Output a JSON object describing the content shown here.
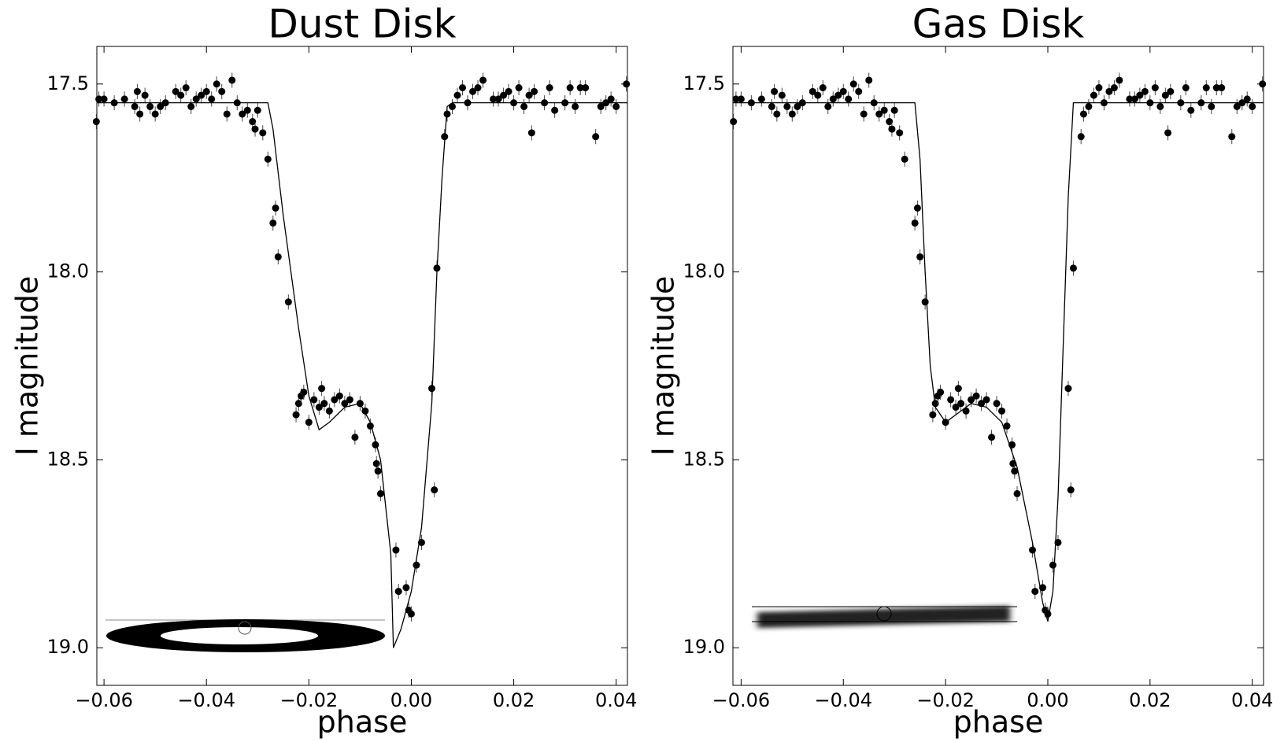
{
  "chart_data": [
    {
      "type": "scatter",
      "title": "Dust Disk",
      "xlabel": "phase",
      "ylabel": "I magnitude",
      "xlim": [
        -0.0614,
        0.0422
      ],
      "ylim": [
        17.4,
        19.1
      ],
      "invert_y": true,
      "xticks": [
        {
          "value": -0.06,
          "label": "−0.06"
        },
        {
          "value": -0.04,
          "label": "−0.04"
        },
        {
          "value": -0.02,
          "label": "−0.02"
        },
        {
          "value": 0,
          "label": "0.00"
        },
        0.02,
        0.04
      ],
      "yticks": [
        17.5,
        {
          "value": 18,
          "label": "18.0"
        },
        18.5,
        {
          "value": 19,
          "label": "19.0"
        }
      ],
      "series": [
        {
          "kind": "points",
          "color": "#000000",
          "yerr": 0.02,
          "x": [
            -0.0615,
            -0.061,
            -0.06,
            -0.058,
            -0.056,
            -0.054,
            -0.0535,
            -0.053,
            -0.052,
            -0.051,
            -0.05,
            -0.049,
            -0.048,
            -0.046,
            -0.045,
            -0.044,
            -0.043,
            -0.042,
            -0.041,
            -0.04,
            -0.039,
            -0.038,
            -0.037,
            -0.036,
            -0.035,
            -0.034,
            -0.033,
            -0.032,
            -0.031,
            -0.0305,
            -0.03,
            -0.029,
            -0.028,
            -0.027,
            -0.0265,
            -0.026,
            -0.024,
            -0.0225,
            -0.022,
            -0.0215,
            -0.021,
            -0.02,
            -0.019,
            -0.018,
            -0.0175,
            -0.017,
            -0.016,
            -0.015,
            -0.014,
            -0.013,
            -0.012,
            -0.011,
            -0.01,
            -0.009,
            -0.008,
            -0.007,
            -0.0068,
            -0.0065,
            -0.006,
            -0.003,
            -0.0025,
            -0.001,
            -0.0005,
            0,
            0.001,
            0.002,
            0.004,
            0.0045,
            0.005,
            0.0065,
            0.007,
            0.008,
            0.009,
            0.01,
            0.011,
            0.012,
            0.013,
            0.014,
            0.016,
            0.017,
            0.018,
            0.019,
            0.02,
            0.021,
            0.022,
            0.023,
            0.0235,
            0.024,
            0.026,
            0.027,
            0.028,
            0.03,
            0.031,
            0.032,
            0.033,
            0.034,
            0.036,
            0.037,
            0.038,
            0.039,
            0.04,
            0.042
          ],
          "values": [
            17.6,
            17.54,
            17.54,
            17.55,
            17.54,
            17.56,
            17.52,
            17.58,
            17.53,
            17.56,
            17.58,
            17.56,
            17.55,
            17.52,
            17.53,
            17.51,
            17.56,
            17.54,
            17.53,
            17.52,
            17.54,
            17.5,
            17.52,
            17.58,
            17.49,
            17.55,
            17.58,
            17.57,
            17.6,
            17.62,
            17.57,
            17.63,
            17.7,
            17.87,
            17.83,
            17.96,
            18.08,
            18.38,
            18.35,
            18.33,
            18.32,
            18.4,
            18.34,
            18.36,
            18.31,
            18.35,
            18.37,
            18.34,
            18.33,
            18.35,
            18.34,
            18.44,
            18.35,
            18.37,
            18.41,
            18.46,
            18.51,
            18.53,
            18.59,
            18.74,
            18.85,
            18.84,
            18.9,
            18.91,
            18.78,
            18.72,
            18.31,
            18.58,
            17.99,
            17.64,
            17.58,
            17.56,
            17.53,
            17.51,
            17.55,
            17.52,
            17.51,
            17.49,
            17.54,
            17.54,
            17.53,
            17.52,
            17.55,
            17.51,
            17.56,
            17.53,
            17.63,
            17.52,
            17.55,
            17.51,
            17.57,
            17.55,
            17.51,
            17.56,
            17.51,
            17.51,
            17.64,
            17.56,
            17.55,
            17.54,
            17.56,
            17.5
          ]
        },
        {
          "kind": "line",
          "color": "#000000",
          "x": [
            -0.0614,
            -0.028,
            -0.027,
            -0.025,
            -0.022,
            -0.02,
            -0.018,
            -0.016,
            -0.013,
            -0.01,
            -0.008,
            -0.006,
            -0.004,
            -0.0035,
            -0.002,
            0,
            0.002,
            0.004,
            0.005,
            0.006,
            0.007,
            0.008,
            0.0422
          ],
          "values": [
            17.55,
            17.55,
            17.62,
            17.85,
            18.15,
            18.33,
            18.42,
            18.4,
            18.36,
            18.35,
            18.4,
            18.5,
            18.75,
            19.0,
            18.95,
            18.85,
            18.68,
            18.35,
            18.0,
            17.75,
            17.56,
            17.55,
            17.55
          ]
        }
      ]
    },
    {
      "type": "scatter",
      "title": "Gas Disk",
      "xlabel": "phase",
      "ylabel": "I magnitude",
      "xlim": [
        -0.0616,
        0.0422
      ],
      "ylim": [
        17.4,
        19.1
      ],
      "invert_y": true,
      "xticks": [
        {
          "value": -0.06,
          "label": "−0.06"
        },
        {
          "value": -0.04,
          "label": "−0.04"
        },
        {
          "value": -0.02,
          "label": "−0.02"
        },
        {
          "value": 0,
          "label": "0.00"
        },
        0.02,
        0.04
      ],
      "yticks": [
        17.5,
        {
          "value": 18,
          "label": "18.0"
        },
        18.5,
        {
          "value": 19,
          "label": "19.0"
        }
      ],
      "series": [
        {
          "kind": "points",
          "color": "#000000",
          "yerr": 0.02,
          "x": [
            -0.0615,
            -0.061,
            -0.06,
            -0.058,
            -0.056,
            -0.054,
            -0.0535,
            -0.053,
            -0.052,
            -0.051,
            -0.05,
            -0.049,
            -0.048,
            -0.046,
            -0.045,
            -0.044,
            -0.043,
            -0.042,
            -0.041,
            -0.04,
            -0.039,
            -0.038,
            -0.037,
            -0.036,
            -0.035,
            -0.034,
            -0.033,
            -0.032,
            -0.031,
            -0.0305,
            -0.03,
            -0.029,
            -0.028,
            -0.026,
            -0.0255,
            -0.025,
            -0.024,
            -0.0225,
            -0.022,
            -0.0215,
            -0.021,
            -0.02,
            -0.019,
            -0.018,
            -0.0175,
            -0.017,
            -0.016,
            -0.015,
            -0.014,
            -0.013,
            -0.012,
            -0.011,
            -0.01,
            -0.009,
            -0.008,
            -0.007,
            -0.0068,
            -0.0065,
            -0.006,
            -0.003,
            -0.0025,
            -0.001,
            -0.0005,
            0,
            0.001,
            0.002,
            0.004,
            0.0045,
            0.005,
            0.0065,
            0.007,
            0.008,
            0.009,
            0.01,
            0.011,
            0.012,
            0.013,
            0.014,
            0.016,
            0.017,
            0.018,
            0.019,
            0.02,
            0.021,
            0.022,
            0.023,
            0.0235,
            0.024,
            0.026,
            0.027,
            0.028,
            0.03,
            0.031,
            0.032,
            0.033,
            0.034,
            0.036,
            0.037,
            0.038,
            0.039,
            0.04,
            0.042
          ],
          "values": [
            17.6,
            17.54,
            17.54,
            17.55,
            17.54,
            17.56,
            17.52,
            17.58,
            17.53,
            17.56,
            17.58,
            17.56,
            17.55,
            17.52,
            17.53,
            17.51,
            17.56,
            17.54,
            17.53,
            17.52,
            17.54,
            17.5,
            17.52,
            17.58,
            17.49,
            17.55,
            17.58,
            17.57,
            17.6,
            17.62,
            17.57,
            17.63,
            17.7,
            17.87,
            17.83,
            17.96,
            18.08,
            18.38,
            18.35,
            18.33,
            18.32,
            18.4,
            18.34,
            18.36,
            18.31,
            18.35,
            18.37,
            18.34,
            18.33,
            18.35,
            18.34,
            18.44,
            18.35,
            18.37,
            18.41,
            18.46,
            18.51,
            18.53,
            18.59,
            18.74,
            18.85,
            18.84,
            18.9,
            18.91,
            18.78,
            18.72,
            18.31,
            18.58,
            17.99,
            17.64,
            17.58,
            17.56,
            17.53,
            17.51,
            17.55,
            17.52,
            17.51,
            17.49,
            17.54,
            17.54,
            17.53,
            17.52,
            17.55,
            17.51,
            17.56,
            17.53,
            17.63,
            17.52,
            17.55,
            17.51,
            17.57,
            17.55,
            17.51,
            17.56,
            17.51,
            17.51,
            17.64,
            17.56,
            17.55,
            17.54,
            17.56,
            17.5
          ]
        },
        {
          "kind": "line",
          "color": "#000000",
          "x": [
            -0.0616,
            -0.026,
            -0.025,
            -0.024,
            -0.023,
            -0.022,
            -0.02,
            -0.018,
            -0.015,
            -0.012,
            -0.009,
            -0.006,
            -0.003,
            -0.001,
            0,
            0.001,
            0.002,
            0.003,
            0.004,
            0.005,
            0.0422
          ],
          "values": [
            17.55,
            17.55,
            17.7,
            18.0,
            18.25,
            18.36,
            18.4,
            18.38,
            18.35,
            18.36,
            18.4,
            18.52,
            18.72,
            18.88,
            18.93,
            18.85,
            18.6,
            18.2,
            17.8,
            17.55,
            17.55
          ]
        }
      ]
    }
  ]
}
